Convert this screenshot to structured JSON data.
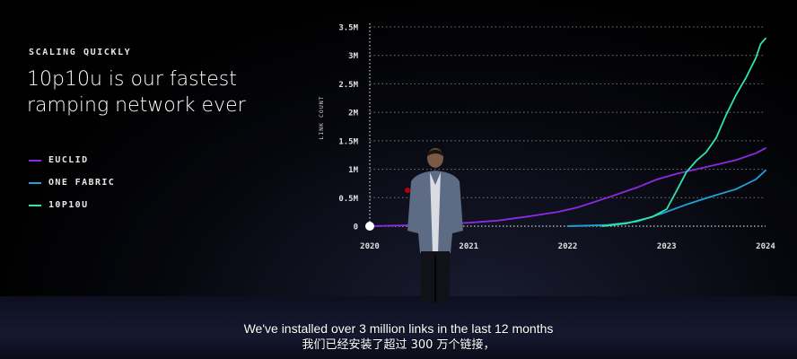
{
  "slide": {
    "eyebrow": "SCALING QUICKLY",
    "headline": "10p10u is our fastest ramping network ever"
  },
  "subtitles": {
    "english": "We've installed over 3 million links in the last 12 months",
    "chinese": "我们已经安装了超过 300 万个链接，"
  },
  "chart_data": {
    "type": "line",
    "title": "",
    "xlabel": "",
    "ylabel": "LINK COUNT",
    "xlim": [
      2020,
      2024
    ],
    "ylim": [
      0,
      3.5
    ],
    "y_unit": "M",
    "x_ticks": [
      2020,
      2021,
      2022,
      2023,
      2024
    ],
    "x_tick_labels": [
      "2020",
      "2021",
      "2022",
      "2023",
      "2024"
    ],
    "y_ticks": [
      0,
      0.5,
      1,
      1.5,
      2,
      2.5,
      3,
      3.5
    ],
    "y_tick_labels": [
      "0",
      "0.5M",
      "1M",
      "1.5M",
      "2M",
      "2.5M",
      "3M",
      "3.5M"
    ],
    "grid": true,
    "legend_position": "left",
    "series": [
      {
        "name": "EUCLID",
        "color": "#8a2be2",
        "points": [
          [
            2020.0,
            0.0
          ],
          [
            2020.5,
            0.02
          ],
          [
            2021.0,
            0.06
          ],
          [
            2021.3,
            0.1
          ],
          [
            2021.6,
            0.17
          ],
          [
            2021.9,
            0.25
          ],
          [
            2022.1,
            0.33
          ],
          [
            2022.4,
            0.5
          ],
          [
            2022.7,
            0.68
          ],
          [
            2022.9,
            0.82
          ],
          [
            2023.1,
            0.92
          ],
          [
            2023.3,
            1.0
          ],
          [
            2023.5,
            1.08
          ],
          [
            2023.7,
            1.16
          ],
          [
            2023.9,
            1.28
          ],
          [
            2024.0,
            1.37
          ]
        ]
      },
      {
        "name": "ONE FABRIC",
        "color": "#1fa2d8",
        "points": [
          [
            2022.0,
            0.0
          ],
          [
            2022.4,
            0.02
          ],
          [
            2022.7,
            0.08
          ],
          [
            2022.95,
            0.22
          ],
          [
            2023.2,
            0.38
          ],
          [
            2023.45,
            0.52
          ],
          [
            2023.7,
            0.65
          ],
          [
            2023.9,
            0.82
          ],
          [
            2024.0,
            0.98
          ]
        ]
      },
      {
        "name": "10P10U",
        "color": "#2ee6a6",
        "points": [
          [
            2022.35,
            0.0
          ],
          [
            2022.6,
            0.05
          ],
          [
            2022.85,
            0.16
          ],
          [
            2023.0,
            0.3
          ],
          [
            2023.1,
            0.62
          ],
          [
            2023.2,
            0.95
          ],
          [
            2023.3,
            1.15
          ],
          [
            2023.4,
            1.3
          ],
          [
            2023.5,
            1.55
          ],
          [
            2023.6,
            1.95
          ],
          [
            2023.7,
            2.3
          ],
          [
            2023.8,
            2.6
          ],
          [
            2023.9,
            2.95
          ],
          [
            2023.95,
            3.2
          ],
          [
            2024.0,
            3.3
          ]
        ]
      }
    ]
  }
}
